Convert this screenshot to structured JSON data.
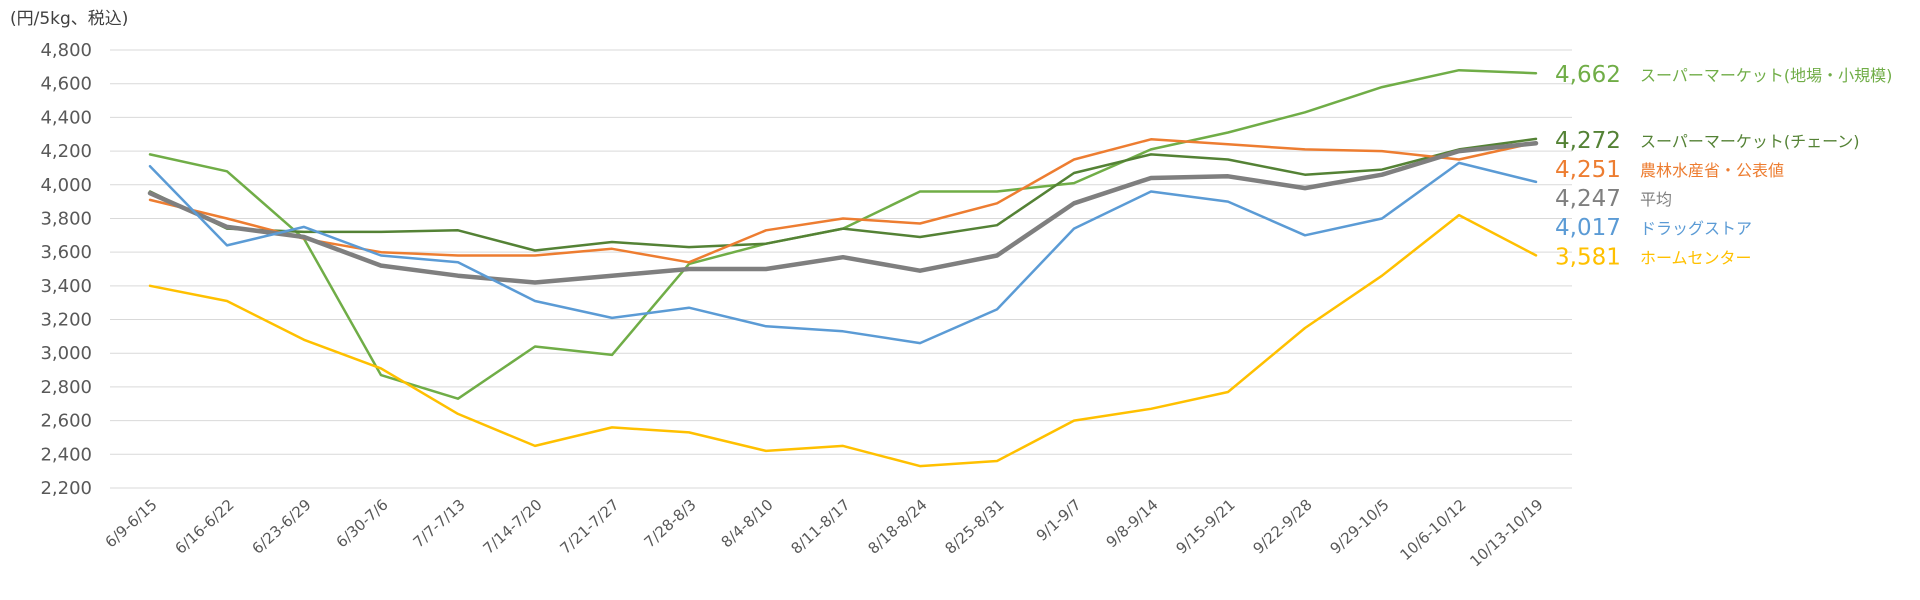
{
  "chart_data": {
    "type": "line",
    "unit_label": "(円/5kg、税込)",
    "ylim": [
      2200,
      4800
    ],
    "ytick_step": 200,
    "y_ticks": [
      "2,200",
      "2,400",
      "2,600",
      "2,800",
      "3,000",
      "3,200",
      "3,400",
      "3,600",
      "3,800",
      "4,000",
      "4,200",
      "4,400",
      "4,600",
      "4,800"
    ],
    "grid": true,
    "categories": [
      "6/9-6/15",
      "6/16-6/22",
      "6/23-6/29",
      "6/30-7/6",
      "7/7-7/13",
      "7/14-7/20",
      "7/21-7/27",
      "7/28-8/3",
      "8/4-8/10",
      "8/11-8/17",
      "8/18-8/24",
      "8/25-8/31",
      "9/1-9/7",
      "9/8-9/14",
      "9/15-9/21",
      "9/22-9/28",
      "9/29-10/5",
      "10/6-10/12",
      "10/13-10/19"
    ],
    "series": [
      {
        "name": "スーパーマーケット(地場・小規模)",
        "end_label": "4,662",
        "color": "#70ad47",
        "width": 2.5,
        "values": [
          4180,
          4080,
          3680,
          2870,
          2730,
          3040,
          2990,
          3530,
          3650,
          3740,
          3960,
          3960,
          4010,
          4210,
          4310,
          4430,
          4580,
          4680,
          4662
        ]
      },
      {
        "name": "スーパーマーケット(チェーン)",
        "end_label": "4,272",
        "color": "#548235",
        "width": 2.5,
        "values": [
          3960,
          3740,
          3720,
          3720,
          3730,
          3610,
          3660,
          3630,
          3650,
          3740,
          3690,
          3760,
          4070,
          4180,
          4150,
          4060,
          4090,
          4210,
          4272
        ]
      },
      {
        "name": "農林水産省・公表値",
        "end_label": "4,251",
        "color": "#ed7d31",
        "width": 2.5,
        "values": [
          3910,
          3800,
          3680,
          3600,
          3580,
          3580,
          3620,
          3540,
          3730,
          3800,
          3770,
          3890,
          4150,
          4270,
          4240,
          4210,
          4200,
          4150,
          4251
        ]
      },
      {
        "name": "平均",
        "end_label": "4,247",
        "color": "#7f7f7f",
        "width": 4.5,
        "values": [
          3950,
          3750,
          3690,
          3520,
          3460,
          3420,
          3460,
          3500,
          3500,
          3570,
          3490,
          3580,
          3890,
          4040,
          4050,
          3980,
          4060,
          4200,
          4247
        ]
      },
      {
        "name": "ドラッグストア",
        "end_label": "4,017",
        "color": "#5b9bd5",
        "width": 2.5,
        "values": [
          4110,
          3640,
          3750,
          3580,
          3540,
          3310,
          3210,
          3270,
          3160,
          3130,
          3060,
          3260,
          3740,
          3960,
          3900,
          3700,
          3800,
          4130,
          4017
        ]
      },
      {
        "name": "ホームセンター",
        "end_label": "3,581",
        "color": "#ffc000",
        "width": 2.5,
        "values": [
          3400,
          3310,
          3080,
          2910,
          2640,
          2450,
          2560,
          2530,
          2420,
          2450,
          2330,
          2360,
          2600,
          2670,
          2770,
          3150,
          3460,
          3820,
          3581
        ]
      }
    ]
  }
}
